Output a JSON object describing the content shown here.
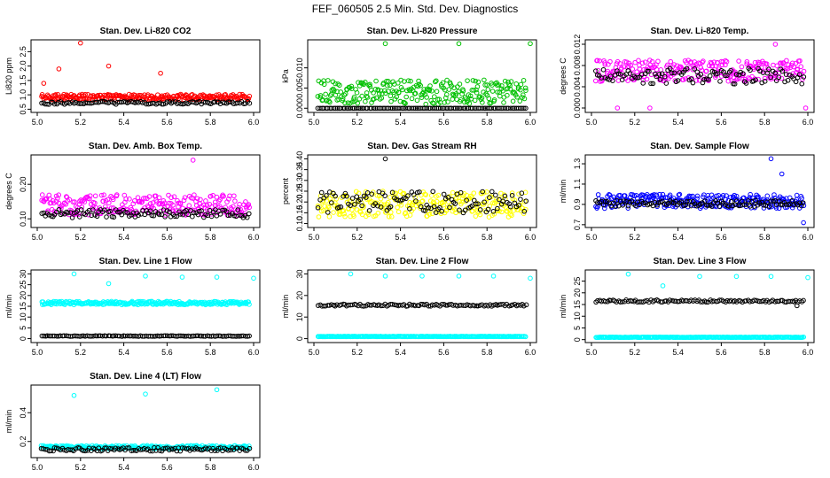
{
  "figure_title": "FEF_060505  2.5 Min. Std. Dev. Diagnostics",
  "colors": {
    "red": "#ff0000",
    "green": "#00c000",
    "magenta": "#ff00ff",
    "yellow": "#ffff00",
    "blue": "#0000ff",
    "cyan": "#00ffff",
    "black": "#000000"
  },
  "chart_data": [
    {
      "type": "scatter",
      "title": "Stan. Dev. Li-820 CO2",
      "ylabel": "Li820 ppm",
      "xlim": [
        5.0,
        6.0
      ],
      "ylim": [
        0.45,
        2.85
      ],
      "xticks": [
        "5.0",
        "5.2",
        "5.4",
        "5.6",
        "5.8",
        "6.0"
      ],
      "yticks": [
        {
          "v": 0.5,
          "label": "0.5"
        },
        {
          "v": 1.0,
          "label": "1.0"
        },
        {
          "v": 1.5,
          "label": "1.5"
        },
        {
          "v": 2.0,
          "label": "2.0"
        },
        {
          "v": 2.5,
          "label": "2.5"
        }
      ],
      "series": [
        {
          "name": "series-1",
          "color": "red",
          "base": 0.92,
          "spread": 0.1,
          "outliers": [
            [
              5.2,
              2.8
            ],
            [
              5.33,
              2.0
            ],
            [
              5.57,
              1.75
            ],
            [
              5.1,
              1.9
            ],
            [
              5.03,
              1.4
            ]
          ]
        },
        {
          "name": "series-2",
          "color": "black",
          "base": 0.72,
          "spread": 0.05,
          "outliers": []
        }
      ]
    },
    {
      "type": "scatter",
      "title": "Stan. Dev. Li-820 Pressure",
      "ylabel": "kPa",
      "xlim": [
        5.0,
        6.0
      ],
      "ylim": [
        -0.0006,
        0.0165
      ],
      "xticks": [
        "5.0",
        "5.2",
        "5.4",
        "5.6",
        "5.8",
        "6.0"
      ],
      "yticks": [
        {
          "v": 0.0,
          "label": "0.000"
        },
        {
          "v": 0.005,
          "label": "0.005"
        },
        {
          "v": 0.01,
          "label": "0.010"
        }
      ],
      "series": [
        {
          "name": "series-1",
          "color": "green",
          "base": 0.004,
          "spread": 0.003,
          "outliers": [
            [
              5.33,
              0.016
            ],
            [
              5.67,
              0.016
            ],
            [
              6.0,
              0.016
            ]
          ]
        },
        {
          "name": "series-2",
          "color": "black",
          "base": 0.0,
          "spread": 0.0,
          "outliers": []
        }
      ]
    },
    {
      "type": "scatter",
      "title": "Stan. Dev. Li-820 Temp.",
      "ylabel": "degrees C",
      "xlim": [
        5.0,
        6.0
      ],
      "ylim": [
        -0.0005,
        0.0125
      ],
      "xticks": [
        "5.0",
        "5.2",
        "5.4",
        "5.6",
        "5.8",
        "6.0"
      ],
      "yticks": [
        {
          "v": 0.0,
          "label": "0.000"
        },
        {
          "v": 0.004,
          "label": "0.004"
        },
        {
          "v": 0.008,
          "label": "0.008"
        },
        {
          "v": 0.012,
          "label": "0.012"
        }
      ],
      "series": [
        {
          "name": "series-1",
          "color": "magenta",
          "base": 0.007,
          "spread": 0.002,
          "outliers": [
            [
              5.85,
              0.012
            ],
            [
              5.12,
              0.0
            ],
            [
              5.27,
              0.0
            ],
            [
              5.99,
              0.0
            ]
          ]
        },
        {
          "name": "series-2",
          "color": "black",
          "base": 0.006,
          "spread": 0.0015,
          "outliers": []
        }
      ]
    },
    {
      "type": "scatter",
      "title": "Stan. Dev. Amb. Box Temp.",
      "ylabel": "degrees C",
      "xlim": [
        5.0,
        6.0
      ],
      "ylim": [
        0.08,
        0.28
      ],
      "xticks": [
        "5.0",
        "5.2",
        "5.4",
        "5.6",
        "5.8",
        "6.0"
      ],
      "yticks": [
        {
          "v": 0.1,
          "label": "0.10"
        },
        {
          "v": 0.2,
          "label": "0.20"
        }
      ],
      "series": [
        {
          "name": "series-1",
          "color": "magenta",
          "base": 0.14,
          "spread": 0.03,
          "outliers": [
            [
              5.72,
              0.27
            ]
          ]
        },
        {
          "name": "series-2",
          "color": "black",
          "base": 0.115,
          "spread": 0.012,
          "outliers": []
        }
      ]
    },
    {
      "type": "scatter",
      "title": "Stan. Dev. Gas Stream RH",
      "ylabel": "percent",
      "xlim": [
        5.0,
        6.0
      ],
      "ylim": [
        0.09,
        0.41
      ],
      "xticks": [
        "5.0",
        "5.2",
        "5.4",
        "5.6",
        "5.8",
        "6.0"
      ],
      "yticks": [
        {
          "v": 0.1,
          "label": "0.10"
        },
        {
          "v": 0.15,
          "label": "0.15"
        },
        {
          "v": 0.2,
          "label": "0.20"
        },
        {
          "v": 0.25,
          "label": "0.25"
        },
        {
          "v": 0.3,
          "label": "0.30"
        },
        {
          "v": 0.35,
          "label": "0.35"
        },
        {
          "v": 0.4,
          "label": "0.40"
        }
      ],
      "series": [
        {
          "name": "series-1",
          "color": "yellow",
          "base": 0.19,
          "spread": 0.06,
          "outliers": []
        },
        {
          "name": "series-2",
          "color": "black",
          "base": 0.2,
          "spread": 0.05,
          "outliers": [
            [
              5.33,
              0.4
            ]
          ]
        }
      ]
    },
    {
      "type": "scatter",
      "title": "Stan. Dev. Sample Flow",
      "ylabel": "ml/min",
      "xlim": [
        5.0,
        6.0
      ],
      "ylim": [
        0.69,
        1.37
      ],
      "xticks": [
        "5.0",
        "5.2",
        "5.4",
        "5.6",
        "5.8",
        "6.0"
      ],
      "yticks": [
        {
          "v": 0.7,
          "label": "0.7"
        },
        {
          "v": 0.9,
          "label": "0.9"
        },
        {
          "v": 1.1,
          "label": "1.1"
        },
        {
          "v": 1.3,
          "label": "1.3"
        }
      ],
      "series": [
        {
          "name": "series-1",
          "color": "blue",
          "base": 0.93,
          "spread": 0.07,
          "outliers": [
            [
              5.83,
              1.35
            ],
            [
              5.88,
              1.2
            ],
            [
              5.98,
              0.72
            ]
          ]
        },
        {
          "name": "series-2",
          "color": "black",
          "base": 0.91,
          "spread": 0.03,
          "outliers": []
        }
      ]
    },
    {
      "type": "scatter",
      "title": "Stan. Dev. Line 1 Flow",
      "ylabel": "ml/min",
      "xlim": [
        5.0,
        6.0
      ],
      "ylim": [
        -1,
        31
      ],
      "xticks": [
        "5.0",
        "5.2",
        "5.4",
        "5.6",
        "5.8",
        "6.0"
      ],
      "yticks": [
        {
          "v": 0,
          "label": "0"
        },
        {
          "v": 5,
          "label": "5"
        },
        {
          "v": 10,
          "label": "10"
        },
        {
          "v": 15,
          "label": "15"
        },
        {
          "v": 20,
          "label": "20"
        },
        {
          "v": 25,
          "label": "25"
        },
        {
          "v": 30,
          "label": "30"
        }
      ],
      "series": [
        {
          "name": "series-1",
          "color": "cyan",
          "base": 16.5,
          "spread": 0.8,
          "outliers": [
            [
              5.17,
              30
            ],
            [
              5.33,
              25.5
            ],
            [
              5.5,
              29
            ],
            [
              5.67,
              28.5
            ],
            [
              5.83,
              28.5
            ],
            [
              6.0,
              28
            ]
          ]
        },
        {
          "name": "series-2",
          "color": "black",
          "base": 1.2,
          "spread": 0.15,
          "outliers": []
        }
      ]
    },
    {
      "type": "scatter",
      "title": "Stan. Dev. Line 2 Flow",
      "ylabel": "ml/min",
      "xlim": [
        5.0,
        6.0
      ],
      "ylim": [
        -1,
        31
      ],
      "xticks": [
        "5.0",
        "5.2",
        "5.4",
        "5.6",
        "5.8",
        "6.0"
      ],
      "yticks": [
        {
          "v": 0,
          "label": "0"
        },
        {
          "v": 10,
          "label": "10"
        },
        {
          "v": 20,
          "label": "20"
        },
        {
          "v": 30,
          "label": "30"
        }
      ],
      "series": [
        {
          "name": "series-1",
          "color": "cyan",
          "base": 1.0,
          "spread": 0.1,
          "outliers": [
            [
              5.17,
              30
            ],
            [
              5.33,
              29
            ],
            [
              5.5,
              29
            ],
            [
              5.67,
              29
            ],
            [
              5.83,
              29
            ],
            [
              6.0,
              28
            ]
          ]
        },
        {
          "name": "series-2",
          "color": "black",
          "base": 15.5,
          "spread": 0.5,
          "outliers": []
        }
      ]
    },
    {
      "type": "scatter",
      "title": "Stan. Dev. Line 3 Flow",
      "ylabel": "ml/min",
      "xlim": [
        5.0,
        6.0
      ],
      "ylim": [
        -0.5,
        29
      ],
      "xticks": [
        "5.0",
        "5.2",
        "5.4",
        "5.6",
        "5.8",
        "6.0"
      ],
      "yticks": [
        {
          "v": 0,
          "label": "0"
        },
        {
          "v": 5,
          "label": "5"
        },
        {
          "v": 10,
          "label": "10"
        },
        {
          "v": 15,
          "label": "15"
        },
        {
          "v": 20,
          "label": "20"
        },
        {
          "v": 25,
          "label": "25"
        }
      ],
      "series": [
        {
          "name": "series-1",
          "color": "cyan",
          "base": 1.0,
          "spread": 0.1,
          "outliers": [
            [
              5.17,
              28
            ],
            [
              5.33,
              23
            ],
            [
              5.5,
              27
            ],
            [
              5.67,
              27
            ],
            [
              5.83,
              27
            ],
            [
              6.0,
              26.5
            ]
          ]
        },
        {
          "name": "series-2",
          "color": "black",
          "base": 16.5,
          "spread": 0.5,
          "outliers": [
            [
              5.95,
              14.5
            ]
          ]
        }
      ]
    },
    {
      "type": "scatter",
      "title": "Stan. Dev. Line 4 (LT) Flow",
      "ylabel": "ml/min",
      "xlim": [
        5.0,
        6.0
      ],
      "ylim": [
        0.1,
        0.58
      ],
      "xticks": [
        "5.0",
        "5.2",
        "5.4",
        "5.6",
        "5.8",
        "6.0"
      ],
      "yticks": [
        {
          "v": 0.2,
          "label": "0.2"
        },
        {
          "v": 0.4,
          "label": "0.4"
        }
      ],
      "series": [
        {
          "name": "series-1",
          "color": "cyan",
          "base": 0.16,
          "spread": 0.012,
          "outliers": [
            [
              5.17,
              0.52
            ],
            [
              5.5,
              0.53
            ],
            [
              5.83,
              0.56
            ]
          ]
        },
        {
          "name": "series-2",
          "color": "black",
          "base": 0.145,
          "spread": 0.012,
          "outliers": []
        }
      ]
    }
  ]
}
